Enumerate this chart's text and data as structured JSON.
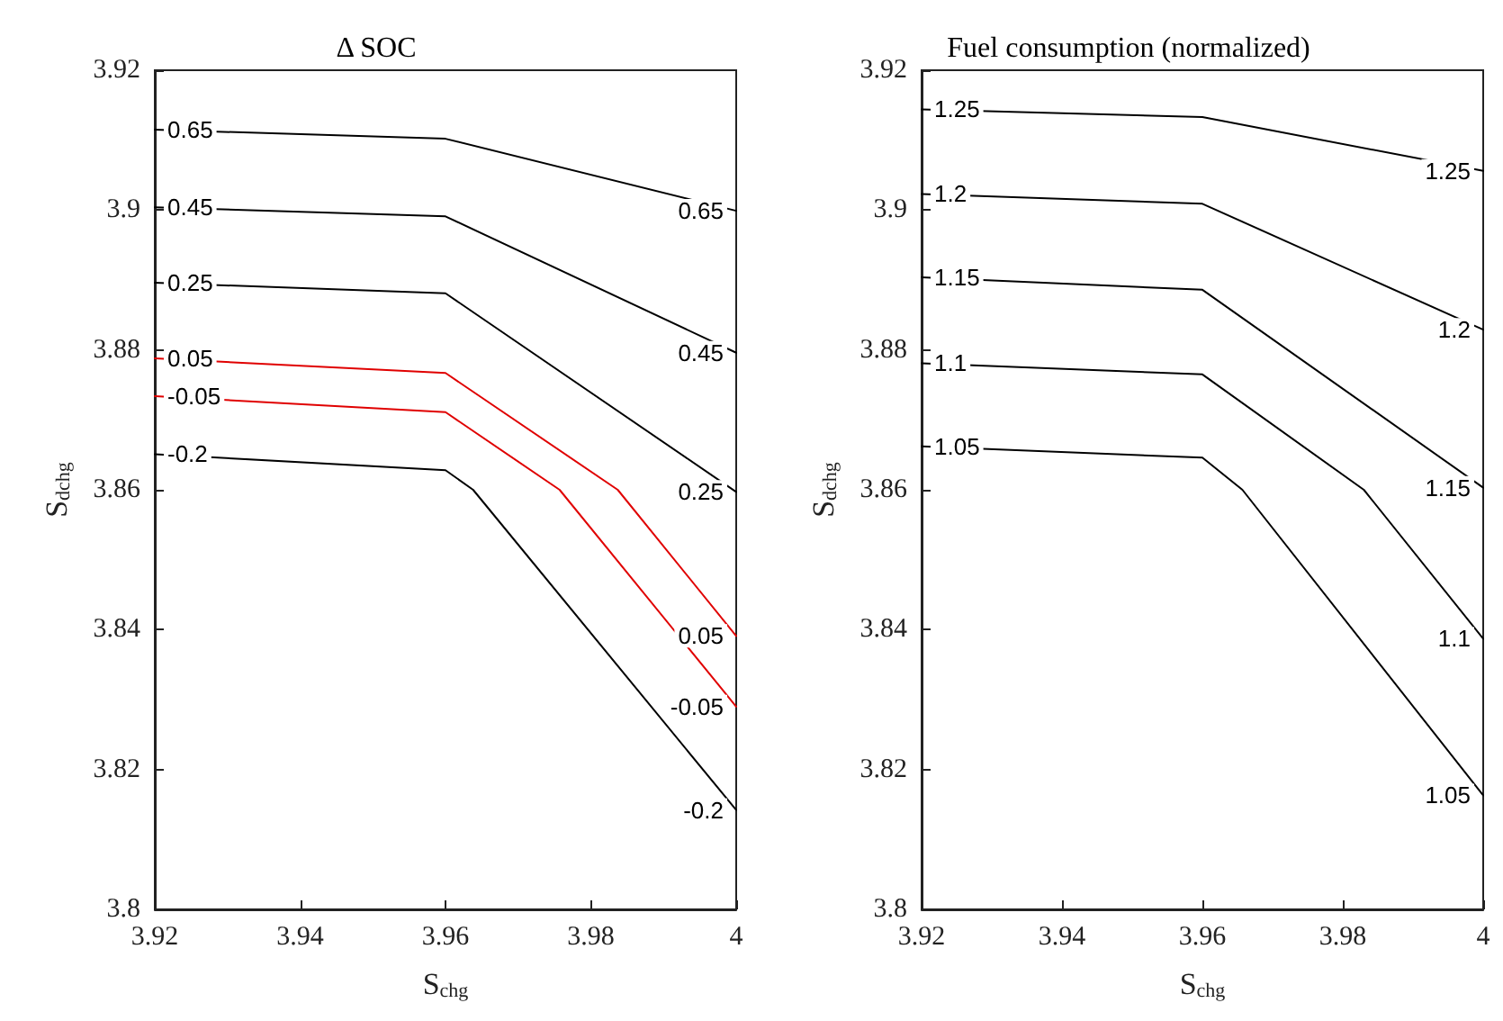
{
  "chart_data": [
    {
      "type": "line",
      "title": "Δ SOC",
      "xlabel": "S$_{chg}$",
      "ylabel": "S$_{dchg}$",
      "xlim": [
        3.92,
        4
      ],
      "xticks": [
        3.92,
        3.94,
        3.96,
        3.98,
        4
      ],
      "ylim": [
        3.8,
        3.92
      ],
      "yticks": [
        3.8,
        3.82,
        3.84,
        3.86,
        3.88,
        3.9,
        3.92
      ],
      "grid": false,
      "marker": "none",
      "line_style": "solid",
      "series": [
        {
          "name": "0.65",
          "color": "#000000",
          "x": [
            3.92,
            3.96,
            4
          ],
          "values": [
            3.9115,
            3.9102,
            3.8999
          ]
        },
        {
          "name": "0.45",
          "color": "#000000",
          "x": [
            3.92,
            3.96,
            4
          ],
          "values": [
            3.9004,
            3.8991,
            3.8796
          ]
        },
        {
          "name": "0.25",
          "color": "#000000",
          "x": [
            3.92,
            3.96,
            4
          ],
          "values": [
            3.8896,
            3.8881,
            3.8597
          ]
        },
        {
          "name": "0.05",
          "color": "#e00000",
          "x": [
            3.92,
            3.96,
            3.9837,
            4
          ],
          "values": [
            3.8788,
            3.8767,
            3.86,
            3.8391
          ]
        },
        {
          "name": "-0.05",
          "color": "#e00000",
          "x": [
            3.92,
            3.96,
            3.9757,
            4
          ],
          "values": [
            3.8734,
            3.8711,
            3.86,
            3.829
          ]
        },
        {
          "name": "-0.2",
          "color": "#000000",
          "x": [
            3.92,
            3.96,
            3.9638,
            4
          ],
          "values": [
            3.8651,
            3.8628,
            3.86,
            3.8142
          ]
        }
      ]
    },
    {
      "type": "line",
      "title": "Fuel consumption (normalized)",
      "xlabel": "S$_{chg}$",
      "ylabel": "S$_{dchg}$",
      "xlim": [
        3.92,
        4
      ],
      "xticks": [
        3.92,
        3.94,
        3.96,
        3.98,
        4
      ],
      "ylim": [
        3.8,
        3.92
      ],
      "yticks": [
        3.8,
        3.82,
        3.84,
        3.86,
        3.88,
        3.9,
        3.92
      ],
      "grid": false,
      "marker": "none",
      "line_style": "solid",
      "series": [
        {
          "name": "1.25",
          "color": "#000000",
          "x": [
            3.92,
            3.96,
            4
          ],
          "values": [
            3.9144,
            3.9133,
            3.9056
          ]
        },
        {
          "name": "1.2",
          "color": "#000000",
          "x": [
            3.92,
            3.96,
            4
          ],
          "values": [
            3.9023,
            3.9009,
            3.8829
          ]
        },
        {
          "name": "1.15",
          "color": "#000000",
          "x": [
            3.92,
            3.96,
            4
          ],
          "values": [
            3.8904,
            3.8886,
            3.8603
          ]
        },
        {
          "name": "1.1",
          "color": "#000000",
          "x": [
            3.92,
            3.96,
            3.983,
            4
          ],
          "values": [
            3.8781,
            3.8765,
            3.86,
            3.8387
          ]
        },
        {
          "name": "1.05",
          "color": "#000000",
          "x": [
            3.92,
            3.96,
            3.9657,
            4
          ],
          "values": [
            3.8662,
            3.8646,
            3.86,
            3.8163
          ]
        }
      ]
    }
  ]
}
